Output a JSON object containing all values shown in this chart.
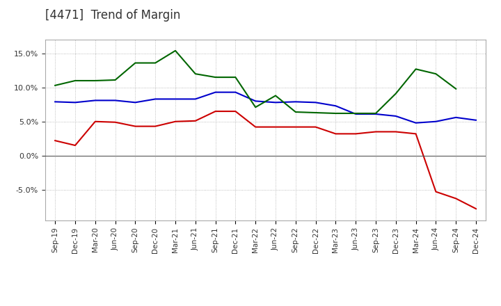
{
  "title": "[4471]  Trend of Margin",
  "labels": [
    "Sep-19",
    "Dec-19",
    "Mar-20",
    "Jun-20",
    "Sep-20",
    "Dec-20",
    "Mar-21",
    "Jun-21",
    "Sep-21",
    "Dec-21",
    "Mar-22",
    "Jun-22",
    "Sep-22",
    "Dec-22",
    "Mar-23",
    "Jun-23",
    "Sep-23",
    "Dec-23",
    "Mar-24",
    "Jun-24",
    "Sep-24",
    "Dec-24"
  ],
  "ordinary_income": [
    7.9,
    7.8,
    8.1,
    8.1,
    7.8,
    8.3,
    8.3,
    8.3,
    9.3,
    9.3,
    8.0,
    7.8,
    7.9,
    7.8,
    7.3,
    6.1,
    6.1,
    5.8,
    4.8,
    5.0,
    5.6,
    5.2
  ],
  "net_income": [
    2.2,
    1.5,
    5.0,
    4.9,
    4.3,
    4.3,
    5.0,
    5.1,
    6.5,
    6.5,
    4.2,
    4.2,
    4.2,
    4.2,
    3.2,
    3.2,
    3.5,
    3.5,
    3.2,
    -5.3,
    -6.3,
    -7.8
  ],
  "operating_cashflow": [
    10.3,
    11.0,
    11.0,
    11.1,
    13.6,
    13.6,
    15.4,
    12.0,
    11.5,
    11.5,
    7.1,
    8.8,
    6.4,
    6.3,
    6.2,
    6.2,
    6.2,
    9.1,
    12.7,
    12.0,
    9.8,
    null
  ],
  "ordinary_income_color": "#0000cc",
  "net_income_color": "#cc0000",
  "operating_cashflow_color": "#006600",
  "ylim": [
    -9.5,
    17.0
  ],
  "yticks": [
    -5.0,
    0.0,
    5.0,
    10.0,
    15.0
  ],
  "background_color": "#ffffff",
  "plot_bg_color": "#ffffff",
  "grid_color": "#aaaaaa",
  "title_fontsize": 12,
  "title_color": "#333333"
}
